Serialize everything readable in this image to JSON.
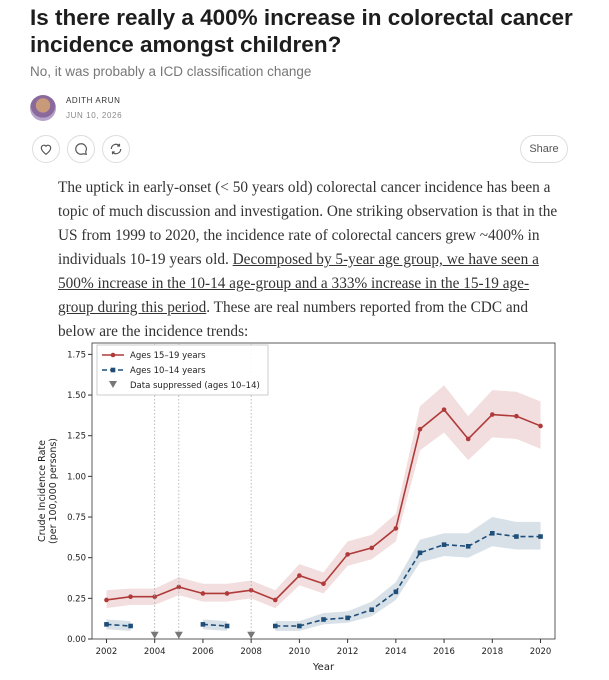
{
  "header": {
    "title": "Is there really a 400% increase in colorectal cancer incidence amongst children?",
    "subtitle": "No, it was probably a ICD classification change",
    "author": "ADITH ARUN",
    "date": "JUN 10, 2026"
  },
  "actions": {
    "share": "Share"
  },
  "body": {
    "before": "The uptick in early-onset (< 50 years old) colorectal cancer incidence has been a topic of much discussion and investigation. One striking observation is that in the US from 1999 to 2020, the incidence rate of colorectal cancers grew ~400% in individuals 10-19 years old. ",
    "link": "Decomposed by 5-year age group, we have seen a 500% increase in the 10-14 age-group and a 333% increase in the 15-19 age-group during this period",
    "after": ". These are real numbers reported from the CDC and below are the incidence trends:"
  },
  "chart_data": {
    "type": "line",
    "x": [
      2002,
      2003,
      2004,
      2005,
      2006,
      2007,
      2008,
      2009,
      2010,
      2011,
      2012,
      2013,
      2014,
      2015,
      2016,
      2017,
      2018,
      2019,
      2020
    ],
    "xlabel": "Year",
    "ylabel": [
      "Crude Incidence Rate",
      "(per 100,000 persons)"
    ],
    "xlim": [
      2001.4,
      2020.6
    ],
    "xticks": [
      2002,
      2004,
      2006,
      2008,
      2010,
      2012,
      2014,
      2016,
      2018,
      2020
    ],
    "ylim": [
      0,
      1.82
    ],
    "yticks": [
      {
        "value": 0,
        "label": "0.00"
      },
      {
        "value": 0.25,
        "label": "0.25"
      },
      {
        "value": 0.5,
        "label": "0.50"
      },
      {
        "value": 0.75,
        "label": "0.75"
      },
      {
        "value": 1,
        "label": "1.00"
      },
      {
        "value": 1.25,
        "label": "1.25"
      },
      {
        "value": 1.5,
        "label": "1.50"
      },
      {
        "value": 1.75,
        "label": "1.75"
      }
    ],
    "legend": "upper left",
    "series": [
      {
        "name": "Ages 15–19 years",
        "color": "#b03a3a",
        "marker": "circle",
        "dash": false,
        "values": [
          0.24,
          0.26,
          0.26,
          0.32,
          0.28,
          0.28,
          0.3,
          0.24,
          0.39,
          0.34,
          0.52,
          0.56,
          0.68,
          1.29,
          1.41,
          1.23,
          1.38,
          1.37,
          1.31
        ],
        "lower": [
          0.19,
          0.21,
          0.21,
          0.27,
          0.23,
          0.23,
          0.25,
          0.19,
          0.33,
          0.28,
          0.45,
          0.49,
          0.6,
          1.16,
          1.27,
          1.1,
          1.24,
          1.23,
          1.17
        ],
        "upper": [
          0.3,
          0.31,
          0.31,
          0.38,
          0.34,
          0.34,
          0.36,
          0.3,
          0.46,
          0.41,
          0.6,
          0.64,
          0.77,
          1.43,
          1.56,
          1.37,
          1.53,
          1.52,
          1.46
        ]
      },
      {
        "name": "Ages 10–14 years",
        "color": "#1f4e79",
        "marker": "square",
        "dash": true,
        "values": [
          0.09,
          0.08,
          null,
          null,
          0.09,
          0.08,
          null,
          0.08,
          0.08,
          0.12,
          0.13,
          0.18,
          0.29,
          0.53,
          0.58,
          0.57,
          0.65,
          0.63,
          0.63
        ],
        "lower": [
          0.06,
          0.05,
          null,
          null,
          0.06,
          0.05,
          null,
          0.05,
          0.05,
          0.09,
          0.1,
          0.14,
          0.24,
          0.47,
          0.51,
          0.5,
          0.57,
          0.55,
          0.55
        ],
        "upper": [
          0.12,
          0.11,
          null,
          null,
          0.12,
          0.11,
          null,
          0.11,
          0.11,
          0.16,
          0.17,
          0.23,
          0.35,
          0.61,
          0.65,
          0.65,
          0.75,
          0.72,
          0.72
        ]
      },
      {
        "name": "Data suppressed (ages 10–14)",
        "color": "#777777",
        "marker": "triangle",
        "x": [
          2004,
          2005,
          2008
        ],
        "values": [
          0.02,
          0.02,
          0.02
        ]
      }
    ]
  }
}
